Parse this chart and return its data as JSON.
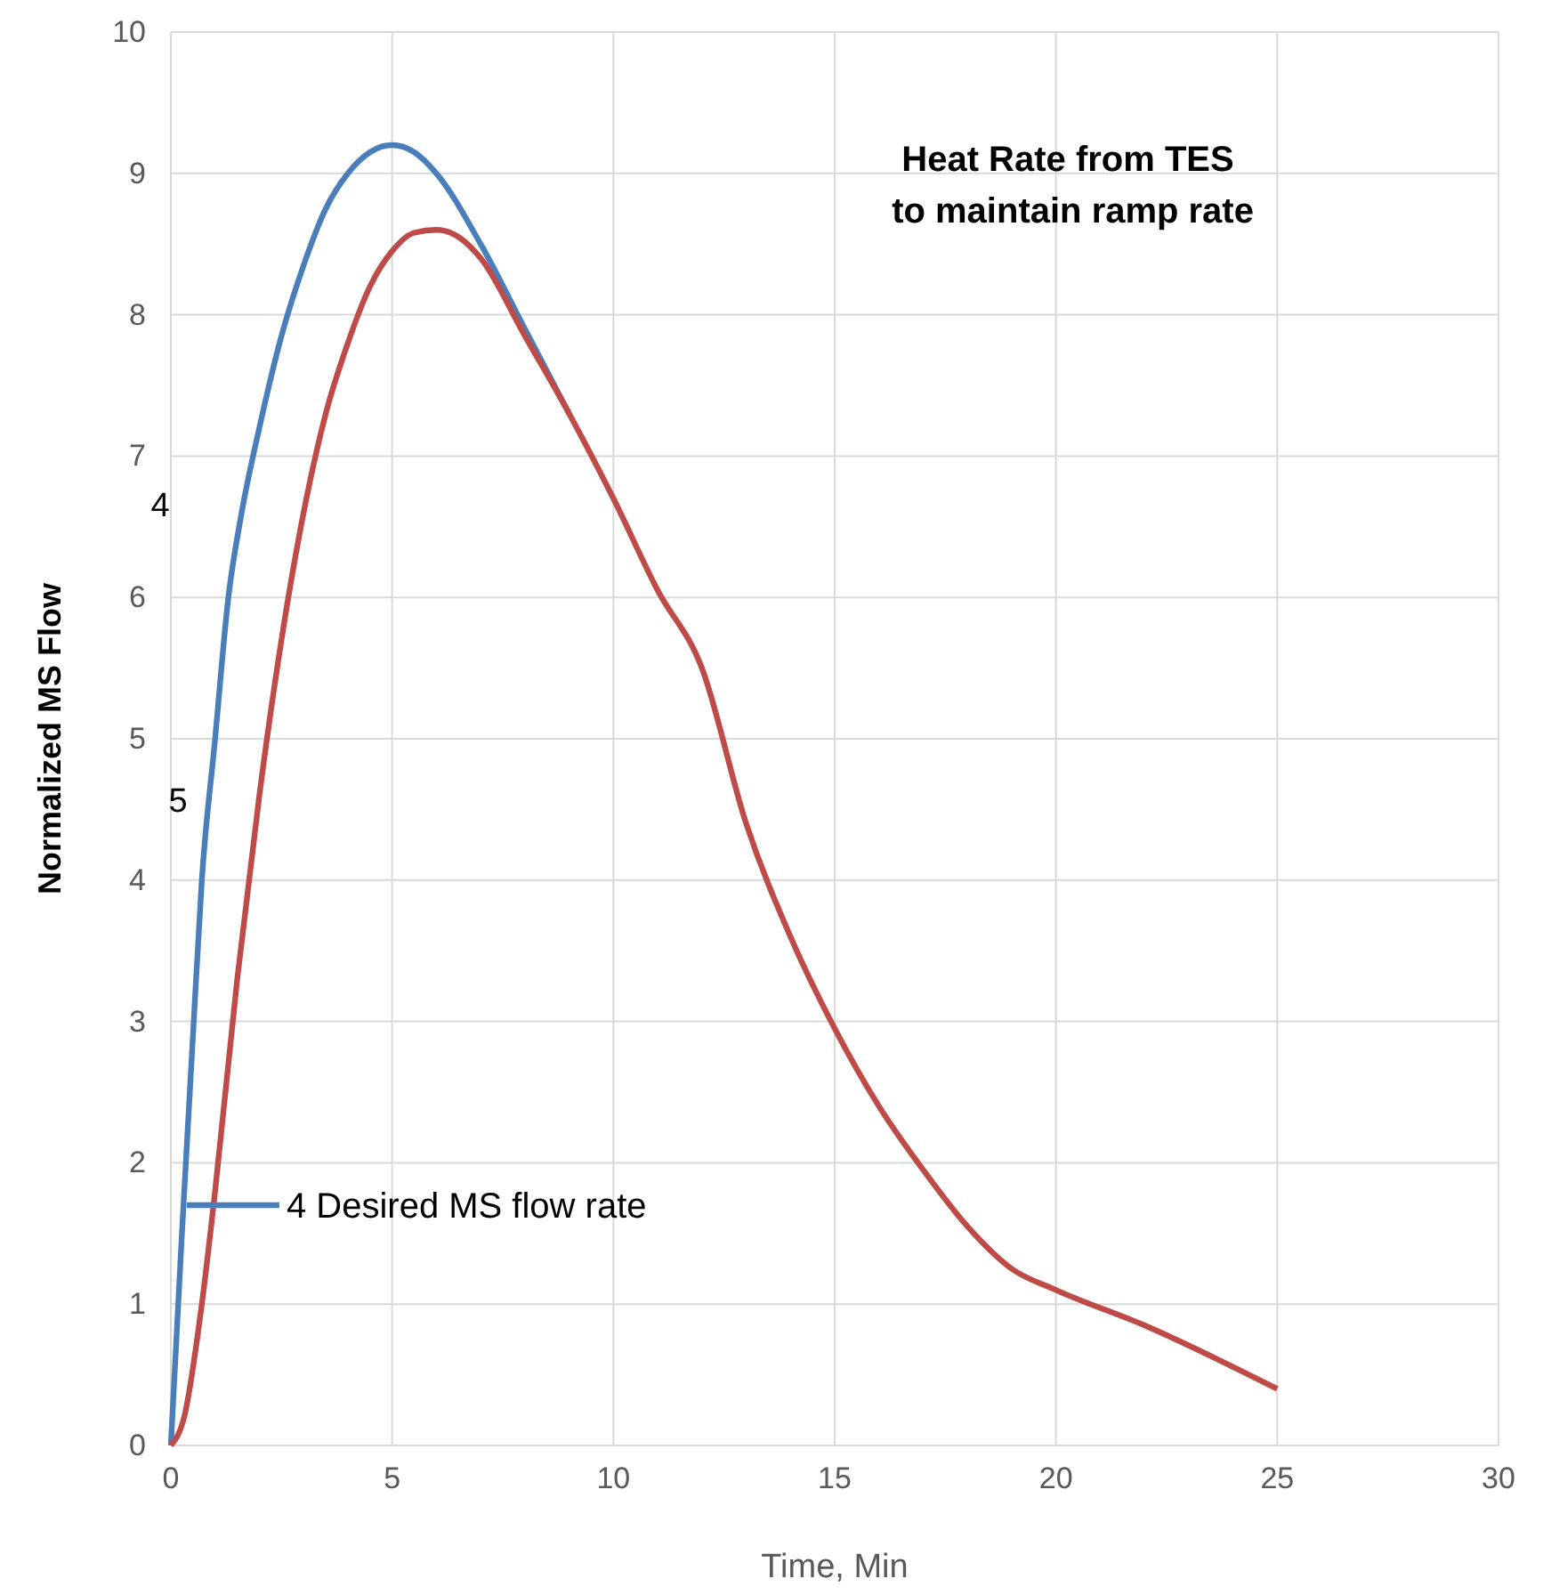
{
  "chart_data": {
    "type": "line",
    "xlabel": "Time, Min",
    "ylabel": "Normalized MS Flow",
    "xlim": [
      0,
      30
    ],
    "xticks": [
      0,
      5,
      10,
      15,
      20,
      25,
      30
    ],
    "ylim": [
      0,
      10
    ],
    "yticks": [
      0,
      1,
      2,
      3,
      4,
      5,
      6,
      7,
      8,
      9,
      10
    ],
    "grid": true,
    "legend": "bottom left",
    "annotations": [
      "Heat Rate from TES\n to maintain ramp rate",
      "4",
      "5"
    ],
    "series": [
      {
        "name": "4 Desired MS flow rate",
        "color": "#4a7ebb",
        "x": [
          0,
          0.25,
          0.5,
          0.7,
          1,
          1.3,
          1.6,
          2,
          2.5,
          3,
          3.5,
          4,
          4.5,
          5,
          5.5,
          6,
          7,
          8,
          9
        ],
        "values": [
          0,
          1.5,
          2.9,
          4,
          5,
          6,
          6.6,
          7.2,
          7.85,
          8.35,
          8.75,
          9.0,
          9.15,
          9.2,
          9.15,
          9.0,
          8.5,
          7.9,
          7.3
        ]
      },
      {
        "color": "#be4b48",
        "x": [
          0,
          0.3,
          0.7,
          1,
          1.5,
          2,
          2.5,
          3,
          3.5,
          4,
          4.5,
          5,
          5.5,
          6,
          6.5,
          7,
          8,
          9,
          10,
          11,
          12,
          13,
          14,
          15,
          16,
          17,
          18,
          19,
          20,
          22,
          25
        ],
        "values": [
          0,
          0.2,
          1,
          1.8,
          3.3,
          4.6,
          5.7,
          6.6,
          7.3,
          7.8,
          8.2,
          8.45,
          8.58,
          8.6,
          8.55,
          8.4,
          7.85,
          7.3,
          6.7,
          6.05,
          5.5,
          4.4,
          3.6,
          2.95,
          2.4,
          1.95,
          1.55,
          1.25,
          1.1,
          0.85,
          0.4
        ]
      }
    ]
  }
}
